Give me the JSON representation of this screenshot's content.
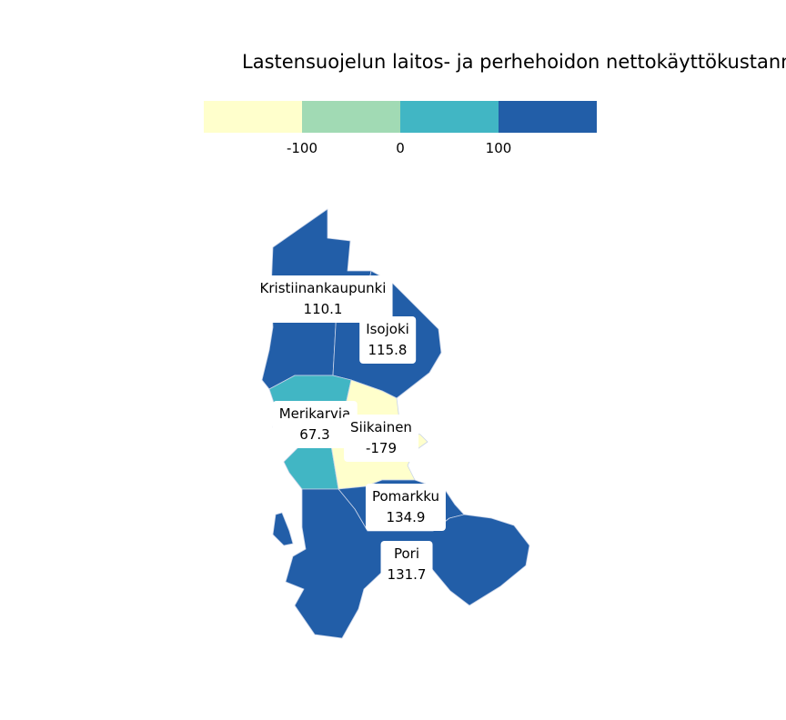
{
  "title": "Lastensuojelun laitos- ja perhehoidon nettokäyttökustann",
  "legend": {
    "colors": [
      "#ffffcc",
      "#a1dab4",
      "#41b6c4",
      "#225ea8"
    ],
    "ticks": [
      "-100",
      "0",
      "100"
    ]
  },
  "regions": [
    {
      "name": "Kristiinankaupunki",
      "value": "110.1",
      "color": "#225ea8"
    },
    {
      "name": "Isojoki",
      "value": "115.8",
      "color": "#225ea8"
    },
    {
      "name": "Merikarvia",
      "value": "67.3",
      "color": "#41b6c4"
    },
    {
      "name": "Siikainen",
      "value": "-179",
      "color": "#ffffcc"
    },
    {
      "name": "Pomarkku",
      "value": "134.9",
      "color": "#225ea8"
    },
    {
      "name": "Pori",
      "value": "131.7",
      "color": "#225ea8"
    }
  ]
}
